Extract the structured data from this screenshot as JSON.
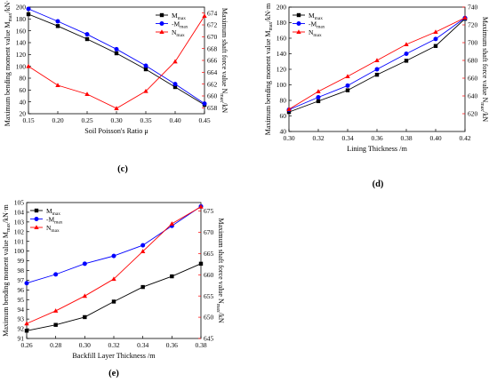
{
  "colors": {
    "mmax": "#000000",
    "neg_mmax": "#0000ff",
    "nmax": "#ff0000"
  },
  "chart_data": [
    {
      "type": "line",
      "panel_label": "(c)",
      "xlabel": "Soil Poisson's Ratio μ",
      "ylabel": "Maximum bending moment value Mmax/kN·m",
      "y2label": "Maximum shaft force value Nmax/kN",
      "xlim": [
        0.15,
        0.45
      ],
      "ylim": [
        20,
        200
      ],
      "y2lim": [
        657,
        675
      ],
      "xticks": [
        "0.15",
        "0.20",
        "0.25",
        "0.30",
        "0.35",
        "0.40",
        "0.45"
      ],
      "yticks": [
        "20",
        "40",
        "60",
        "80",
        "100",
        "120",
        "140",
        "160",
        "180",
        "200"
      ],
      "y2ticks": [
        "658",
        "660",
        "662",
        "664",
        "666",
        "668",
        "670",
        "672",
        "674"
      ],
      "legend_position": "top-right",
      "x": [
        0.15,
        0.2,
        0.25,
        0.3,
        0.35,
        0.4,
        0.45
      ],
      "series": [
        {
          "name": "Mmax",
          "axis": "left",
          "values": [
            188,
            168,
            146,
            122,
            95,
            65,
            35
          ]
        },
        {
          "name": "-Mmax",
          "axis": "left",
          "values": [
            197,
            176,
            154,
            129,
            101,
            70,
            37
          ]
        },
        {
          "name": "Nmax",
          "axis": "right",
          "values": [
            665.0,
            661.8,
            660.3,
            657.9,
            660.8,
            665.8,
            673.5
          ]
        }
      ]
    },
    {
      "type": "line",
      "panel_label": "(d)",
      "xlabel": "Lining Thickness /m",
      "ylabel": "Maximum bending moment value Mmax/kN·m",
      "y2label": "Maximum shaft force value Nmax/kN",
      "xlim": [
        0.3,
        0.42
      ],
      "ylim": [
        40,
        200
      ],
      "y2lim": [
        600,
        740
      ],
      "xticks": [
        "0.30",
        "0.32",
        "0.34",
        "0.36",
        "0.38",
        "0.40",
        "0.42"
      ],
      "yticks": [
        "40",
        "60",
        "80",
        "100",
        "120",
        "140",
        "160",
        "180",
        "200"
      ],
      "y2ticks": [
        "620",
        "640",
        "660",
        "680",
        "700",
        "720",
        "740"
      ],
      "legend_position": "top-left",
      "x": [
        0.3,
        0.32,
        0.34,
        0.36,
        0.38,
        0.4,
        0.42
      ],
      "series": [
        {
          "name": "Mmax",
          "axis": "left",
          "values": [
            65,
            79,
            93,
            113,
            131,
            150,
            185
          ]
        },
        {
          "name": "-Mmax",
          "axis": "left",
          "values": [
            68,
            84,
            99,
            120,
            140,
            159,
            186
          ]
        },
        {
          "name": "Nmax",
          "axis": "right",
          "values": [
            625,
            645,
            662,
            680,
            698,
            712,
            728
          ]
        }
      ]
    },
    {
      "type": "line",
      "panel_label": "(e)",
      "xlabel": "Backfill Layer Thickness /m",
      "ylabel": "Maximum bending moment value Mmax/kN·m",
      "y2label": "Maximum shaft force value Nmax/kN",
      "xlim": [
        0.26,
        0.38
      ],
      "ylim": [
        91,
        105
      ],
      "y2lim": [
        645,
        677
      ],
      "xticks": [
        "0.26",
        "0.28",
        "0.30",
        "0.32",
        "0.34",
        "0.36",
        "0.38"
      ],
      "yticks": [
        "91",
        "92",
        "93",
        "94",
        "95",
        "96",
        "97",
        "98",
        "99",
        "100",
        "101",
        "102",
        "103",
        "104",
        "105"
      ],
      "y2ticks": [
        "645",
        "650",
        "655",
        "660",
        "665",
        "670",
        "675"
      ],
      "legend_position": "top-left",
      "x": [
        0.26,
        0.28,
        0.3,
        0.32,
        0.34,
        0.36,
        0.38
      ],
      "series": [
        {
          "name": "Mmax",
          "axis": "left",
          "values": [
            91.8,
            92.4,
            93.2,
            94.8,
            96.3,
            97.4,
            98.7
          ]
        },
        {
          "name": "-Mmax",
          "axis": "left",
          "values": [
            96.7,
            97.6,
            98.7,
            99.5,
            100.6,
            102.6,
            104.6
          ]
        },
        {
          "name": "Nmax",
          "axis": "right",
          "values": [
            648.5,
            651.5,
            655.0,
            659.0,
            665.5,
            672.0,
            676.0
          ]
        }
      ]
    }
  ]
}
